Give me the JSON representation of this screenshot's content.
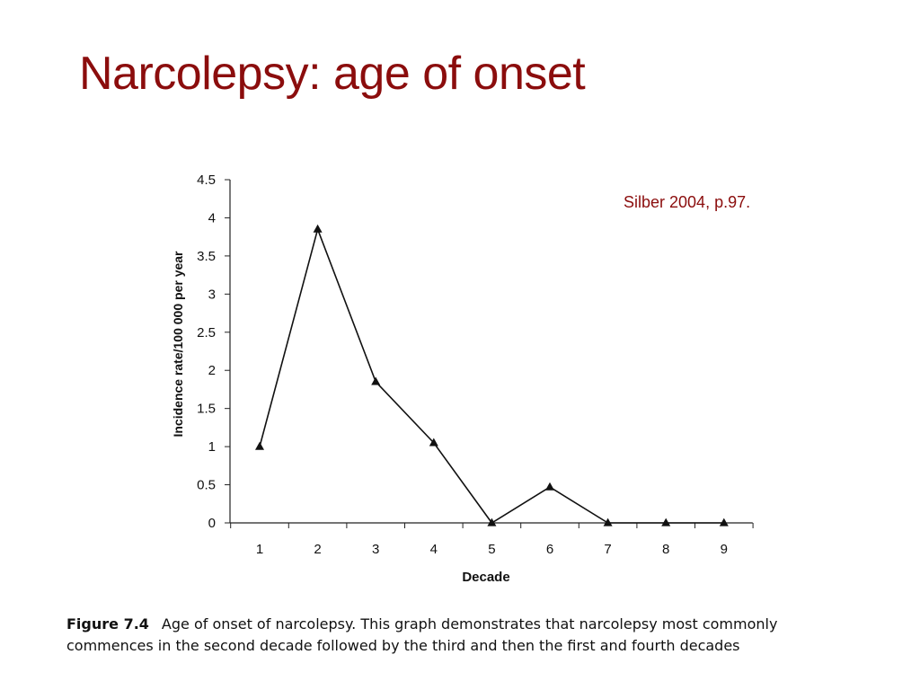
{
  "slide": {
    "title": "Narcolepsy: age of onset",
    "citation": "Silber 2004, p.97.",
    "title_color": "#8b0d0d"
  },
  "caption": {
    "figure_label": "Figure 7.4",
    "line1": "Age of onset of narcolepsy. This graph demonstrates that narcolepsy most commonly",
    "line2": "commences in the second decade followed by the third and then the first and fourth decades"
  },
  "chart_data": {
    "type": "line",
    "title": "",
    "xlabel": "Decade",
    "ylabel": "Incidence rate/100 000 per year",
    "categories": [
      "1",
      "2",
      "3",
      "4",
      "5",
      "6",
      "7",
      "8",
      "9"
    ],
    "series": [
      {
        "values": [
          1.0,
          3.85,
          1.85,
          1.05,
          0.0,
          0.47,
          0.0,
          0.0,
          0.0
        ]
      }
    ],
    "ylim": [
      0,
      4.5
    ],
    "yticks": [
      "0",
      "0.5",
      "1",
      "1.5",
      "2",
      "2.5",
      "3",
      "3.5",
      "4",
      "4.5"
    ],
    "marker": "triangle",
    "grid": false,
    "legend": "none"
  }
}
